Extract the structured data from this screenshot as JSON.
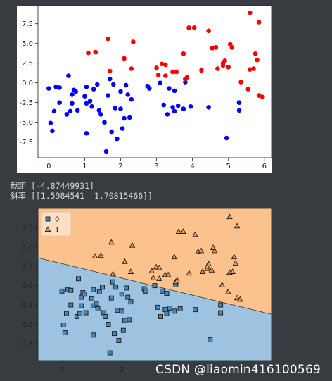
{
  "output": {
    "intercept_label": "截距",
    "intercept_value": "[-4.87449931]",
    "slope_label": "斜率",
    "slope_value": "[[1.5984541  1.70815466]]"
  },
  "watermark": "CSDN @liaomin416100569",
  "chart_data": [
    {
      "type": "scatter",
      "title": "",
      "xlabel": "",
      "ylabel": "",
      "xlim": [
        -0.3,
        6.2
      ],
      "ylim": [
        -9.5,
        9.8
      ],
      "xticks": [
        0,
        1,
        2,
        3,
        4,
        5,
        6
      ],
      "yticks": [
        -7.5,
        -5.0,
        -2.5,
        0.0,
        2.5,
        5.0,
        7.5
      ],
      "grid": false,
      "series": [
        {
          "color": "#0000ff",
          "points": [
            [
              0.0,
              -0.7
            ],
            [
              0.05,
              -5.1
            ],
            [
              0.1,
              -6.1
            ],
            [
              0.15,
              -3.6
            ],
            [
              0.2,
              -0.5
            ],
            [
              0.3,
              -2.5
            ],
            [
              0.3,
              -0.6
            ],
            [
              0.5,
              -4.0
            ],
            [
              0.55,
              0.9
            ],
            [
              0.6,
              -3.6
            ],
            [
              0.65,
              -1.5
            ],
            [
              0.65,
              -2.6
            ],
            [
              0.7,
              -0.9
            ],
            [
              0.75,
              -1.1
            ],
            [
              0.8,
              -3.5
            ],
            [
              1.0,
              -1.7
            ],
            [
              1.05,
              -0.5
            ],
            [
              1.05,
              -2.6
            ],
            [
              1.05,
              -6.4
            ],
            [
              1.15,
              -2.3
            ],
            [
              1.2,
              -3.0
            ],
            [
              1.25,
              -0.8
            ],
            [
              1.35,
              -0.2
            ],
            [
              1.4,
              -3.5
            ],
            [
              1.45,
              -4.0
            ],
            [
              1.55,
              -5.0
            ],
            [
              1.6,
              -8.7
            ],
            [
              1.65,
              -1.6
            ],
            [
              1.7,
              0.5
            ],
            [
              1.75,
              -6.2
            ],
            [
              1.8,
              -0.2
            ],
            [
              1.85,
              -3.2
            ],
            [
              1.9,
              -7.1
            ],
            [
              2.0,
              -1.1
            ],
            [
              2.0,
              -3.3
            ],
            [
              2.05,
              -5.8
            ],
            [
              2.1,
              -4.5
            ],
            [
              2.15,
              -0.3
            ],
            [
              2.2,
              -1.5
            ],
            [
              2.25,
              -4.4
            ],
            [
              2.3,
              -2.1
            ],
            [
              2.75,
              -0.4
            ],
            [
              2.8,
              -0.7
            ],
            [
              3.1,
              0.0
            ],
            [
              3.2,
              -2.8
            ],
            [
              3.3,
              -4.0
            ],
            [
              3.35,
              -0.7
            ],
            [
              3.45,
              -3.1
            ],
            [
              3.5,
              -3.6
            ],
            [
              3.5,
              -1.0
            ],
            [
              3.6,
              -2.9
            ],
            [
              3.75,
              -3.3
            ],
            [
              3.8,
              0.1
            ],
            [
              3.95,
              -3.0
            ],
            [
              4.45,
              -3.1
            ],
            [
              4.95,
              -7.0
            ],
            [
              5.3,
              -3.5
            ],
            [
              5.3,
              -2.5
            ]
          ]
        },
        {
          "color": "#ff0000",
          "points": [
            [
              1.1,
              3.8
            ],
            [
              1.3,
              3.9
            ],
            [
              1.65,
              5.6
            ],
            [
              1.7,
              1.5
            ],
            [
              2.1,
              3.1
            ],
            [
              2.3,
              1.8
            ],
            [
              2.35,
              5.2
            ],
            [
              3.0,
              1.9
            ],
            [
              3.05,
              1.0
            ],
            [
              3.15,
              2.4
            ],
            [
              3.25,
              2.3
            ],
            [
              3.25,
              0.9
            ],
            [
              3.45,
              1.4
            ],
            [
              3.55,
              1.4
            ],
            [
              3.75,
              3.7
            ],
            [
              3.8,
              0.5
            ],
            [
              3.85,
              0.7
            ],
            [
              3.9,
              7.0
            ],
            [
              4.05,
              7.0
            ],
            [
              4.25,
              1.6
            ],
            [
              4.45,
              6.6
            ],
            [
              4.55,
              4.4
            ],
            [
              4.65,
              4.5
            ],
            [
              4.7,
              1.8
            ],
            [
              4.85,
              2.2
            ],
            [
              4.85,
              2.5
            ],
            [
              4.9,
              2.8
            ],
            [
              5.0,
              2.0
            ],
            [
              5.05,
              4.9
            ],
            [
              5.1,
              4.5
            ],
            [
              5.35,
              0.1
            ],
            [
              5.55,
              -0.8
            ],
            [
              5.6,
              8.9
            ],
            [
              5.6,
              1.7
            ],
            [
              5.7,
              1.8
            ],
            [
              5.75,
              3.7
            ],
            [
              5.8,
              2.9
            ],
            [
              5.85,
              7.7
            ],
            [
              5.85,
              -1.6
            ],
            [
              5.95,
              -1.8
            ]
          ]
        }
      ]
    },
    {
      "type": "scatter",
      "title": "",
      "xlabel": "",
      "ylabel": "",
      "xlim": [
        -0.8,
        7.0
      ],
      "ylim": [
        -9.7,
        10.0
      ],
      "xticks": [
        0,
        2
      ],
      "yticks": [
        -7.5,
        -5.0,
        -2.5,
        0.0,
        2.5,
        5.0,
        7.5
      ],
      "grid": false,
      "legend_placement": "top-left",
      "decision_boundary": {
        "intercept": -4.87449931,
        "coef": [
          1.5984541,
          1.70815466
        ]
      },
      "region_colors": {
        "class_0": "#9dc3e0",
        "class_1": "#fcc28e"
      },
      "series": [
        {
          "name": "0",
          "marker": "square",
          "color": "#4a86b5",
          "points": [
            [
              0.0,
              -0.7
            ],
            [
              0.05,
              -5.1
            ],
            [
              0.1,
              -6.1
            ],
            [
              0.15,
              -3.6
            ],
            [
              0.2,
              -0.5
            ],
            [
              0.3,
              -2.5
            ],
            [
              0.3,
              -0.6
            ],
            [
              0.5,
              -4.0
            ],
            [
              0.55,
              0.9
            ],
            [
              0.6,
              -3.6
            ],
            [
              0.65,
              -1.5
            ],
            [
              0.65,
              -2.6
            ],
            [
              0.7,
              -0.9
            ],
            [
              0.75,
              -1.1
            ],
            [
              0.8,
              -3.5
            ],
            [
              1.0,
              -1.7
            ],
            [
              1.05,
              -0.5
            ],
            [
              1.05,
              -2.6
            ],
            [
              1.05,
              -6.4
            ],
            [
              1.15,
              -2.3
            ],
            [
              1.2,
              -3.0
            ],
            [
              1.25,
              -0.8
            ],
            [
              1.35,
              -0.2
            ],
            [
              1.4,
              -3.5
            ],
            [
              1.45,
              -4.0
            ],
            [
              1.55,
              -5.0
            ],
            [
              1.6,
              -8.7
            ],
            [
              1.65,
              -1.6
            ],
            [
              1.7,
              0.5
            ],
            [
              1.75,
              -6.2
            ],
            [
              1.8,
              -0.2
            ],
            [
              1.85,
              -3.2
            ],
            [
              1.9,
              -7.1
            ],
            [
              2.0,
              -1.1
            ],
            [
              2.0,
              -3.3
            ],
            [
              2.05,
              -5.8
            ],
            [
              2.1,
              -4.5
            ],
            [
              2.15,
              -0.3
            ],
            [
              2.2,
              -1.5
            ],
            [
              2.25,
              -4.4
            ],
            [
              2.3,
              -2.1
            ],
            [
              2.75,
              -0.4
            ],
            [
              2.8,
              -0.7
            ],
            [
              3.1,
              0.0
            ],
            [
              3.2,
              -2.8
            ],
            [
              3.3,
              -4.0
            ],
            [
              3.35,
              -0.7
            ],
            [
              3.45,
              -3.1
            ],
            [
              3.5,
              -3.6
            ],
            [
              3.5,
              -1.0
            ],
            [
              3.6,
              -2.9
            ],
            [
              3.75,
              -3.3
            ],
            [
              3.8,
              0.1
            ],
            [
              3.95,
              -3.0
            ],
            [
              4.45,
              -3.1
            ],
            [
              4.95,
              -7.0
            ],
            [
              5.3,
              -3.5
            ],
            [
              5.3,
              -2.5
            ]
          ]
        },
        {
          "name": "1",
          "marker": "triangle",
          "color": "#f39a4a",
          "points": [
            [
              1.1,
              3.8
            ],
            [
              1.3,
              3.9
            ],
            [
              1.65,
              5.6
            ],
            [
              1.7,
              1.5
            ],
            [
              2.1,
              3.1
            ],
            [
              2.3,
              1.8
            ],
            [
              2.35,
              5.2
            ],
            [
              3.0,
              1.9
            ],
            [
              3.05,
              1.0
            ],
            [
              3.15,
              2.4
            ],
            [
              3.25,
              2.3
            ],
            [
              3.25,
              0.9
            ],
            [
              3.45,
              1.4
            ],
            [
              3.55,
              1.4
            ],
            [
              3.75,
              3.7
            ],
            [
              3.8,
              0.5
            ],
            [
              3.85,
              0.7
            ],
            [
              3.9,
              7.0
            ],
            [
              4.05,
              7.0
            ],
            [
              4.25,
              1.6
            ],
            [
              4.45,
              6.6
            ],
            [
              4.55,
              4.4
            ],
            [
              4.65,
              4.5
            ],
            [
              4.7,
              1.8
            ],
            [
              4.85,
              2.2
            ],
            [
              4.85,
              2.5
            ],
            [
              4.9,
              2.8
            ],
            [
              5.0,
              2.0
            ],
            [
              5.05,
              4.9
            ],
            [
              5.1,
              4.5
            ],
            [
              5.35,
              0.1
            ],
            [
              5.55,
              -0.8
            ],
            [
              5.6,
              8.9
            ],
            [
              5.6,
              1.7
            ],
            [
              5.7,
              1.8
            ],
            [
              5.75,
              3.7
            ],
            [
              5.8,
              2.9
            ],
            [
              5.85,
              7.7
            ],
            [
              5.85,
              -1.6
            ],
            [
              5.95,
              -1.8
            ]
          ]
        }
      ]
    }
  ]
}
